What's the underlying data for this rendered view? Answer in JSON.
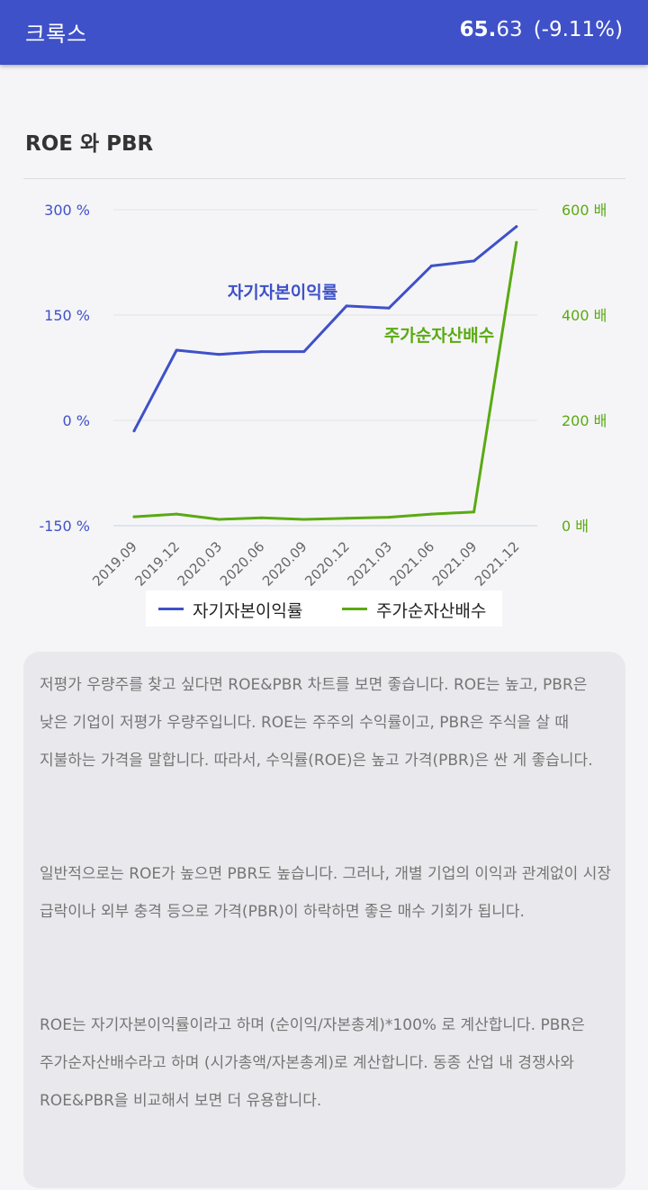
{
  "header": {
    "stock_name": "크록스",
    "price_int": "65.",
    "price_dec": "63",
    "change": "(-9.11%)"
  },
  "section": {
    "title": "ROE 와 PBR"
  },
  "colors": {
    "header_bg": "#3f51c8",
    "roe": "#3f51c8",
    "pbr": "#5aaa12"
  },
  "chart_data": {
    "type": "line",
    "categories": [
      "2019.09",
      "2019.12",
      "2020.03",
      "2020.06",
      "2020.09",
      "2020.12",
      "2021.03",
      "2021.06",
      "2021.09",
      "2021.12"
    ],
    "series": [
      {
        "name": "자기자본이익률",
        "axis": "left",
        "values": [
          -15,
          100,
          94,
          98,
          98,
          163,
          160,
          220,
          227,
          276
        ]
      },
      {
        "name": "주가순자산배수",
        "axis": "right",
        "values": [
          17,
          22,
          12,
          15,
          12,
          14,
          16,
          22,
          26,
          538
        ]
      }
    ],
    "y_left": {
      "min": -150,
      "max": 300,
      "ticks": [
        "300 %",
        "150 %",
        "0 %",
        "-150 %"
      ],
      "tick_values": [
        300,
        150,
        0,
        -150
      ]
    },
    "y_right": {
      "min": 0,
      "max": 600,
      "ticks": [
        "600 배",
        "400 배",
        "200 배",
        "0 배"
      ],
      "tick_values": [
        600,
        400,
        200,
        0
      ]
    },
    "annotations": [
      "자기자본이익률",
      "주가순자산배수"
    ],
    "legend": {
      "position": "bottom",
      "items": [
        "자기자본이익률",
        "주가순자산배수"
      ]
    },
    "grid": true
  },
  "info": {
    "paragraphs": [
      "저평가 우량주를 찾고 싶다면 ROE&PBR 차트를 보면 좋습니다. ROE는 높고, PBR은 낮은 기업이 저평가 우량주입니다. ROE는 주주의 수익률이고, PBR은 주식을 살 때 지불하는 가격을 말합니다. 따라서, 수익률(ROE)은 높고 가격(PBR)은 싼 게 좋습니다.",
      "일반적으로는 ROE가 높으면 PBR도 높습니다. 그러나, 개별 기업의 이익과 관계없이 시장 급락이나 외부 충격 등으로 가격(PBR)이 하락하면 좋은 매수 기회가 됩니다.",
      "ROE는 자기자본이익률이라고 하며 (순이익/자본총계)*100% 로 계산합니다. PBR은 주가순자산배수라고 하며 (시가총액/자본총계)로 계산합니다. 동종 산업 내 경쟁사와 ROE&PBR을 비교해서 보면 더 유용합니다."
    ]
  }
}
